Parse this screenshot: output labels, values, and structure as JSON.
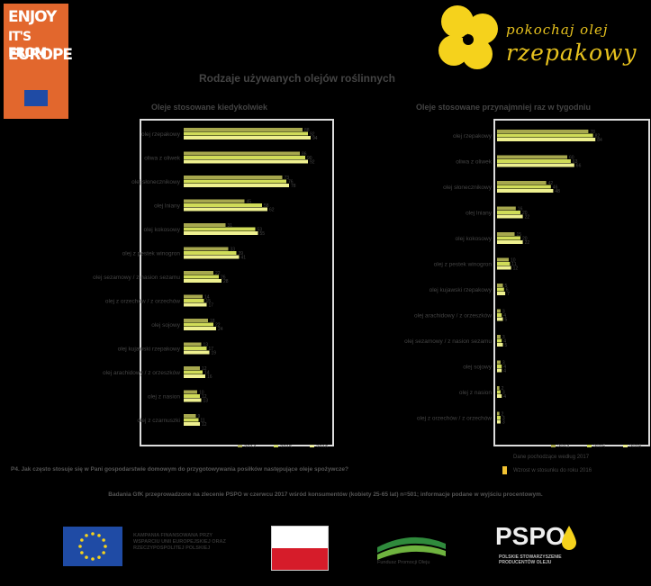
{
  "header": {
    "enjoy_lines": [
      "ENJOY",
      "IT'S FROM",
      "EUROPE"
    ],
    "brand_line1": "pokochaj olej",
    "brand_line2": "rzepakowy",
    "title": "Rodzaje używanych olejów roślinnych"
  },
  "colors": {
    "y2014": "#a7a84e",
    "y2015": "#d0dc58",
    "y2016": "#eef08f",
    "orange": "#e2672d",
    "yellow": "#f5d21c",
    "highlight": "#f2c232"
  },
  "chart_data": [
    {
      "type": "bar",
      "title": "Oleje stosowane kiedykolwiek",
      "categories": [
        "olej rzepakowy",
        "oliwa z oliwek",
        "olej słonecznikowy",
        "olej lniany",
        "olej kokosowy",
        "olej z pestek winogron",
        "olej sezamowy / z nasion sezamu",
        "olej z orzechów / z orzechów",
        "olej sojowy",
        "olej kujawski rzepakowy",
        "olej arachidowy / z orzeszków",
        "olej z nasion",
        "olej z czarnuszki"
      ],
      "series": [
        {
          "name": "2014",
          "values": [
            88,
            86,
            73,
            45,
            31,
            33,
            22,
            14,
            18,
            13,
            12,
            10,
            9
          ]
        },
        {
          "name": "2015",
          "values": [
            92,
            90,
            76,
            58,
            53,
            39,
            26,
            15,
            22,
            17,
            14,
            12,
            11
          ]
        },
        {
          "name": "2016",
          "values": [
            94,
            92,
            78,
            62,
            55,
            41,
            28,
            17,
            24,
            19,
            16,
            13,
            12
          ]
        }
      ],
      "xlim": [
        0,
        100
      ],
      "legend": "bottom"
    },
    {
      "type": "bar",
      "title": "Oleje stosowane przynajmniej raz w tygodniu",
      "categories": [
        "olej rzepakowy",
        "oliwa z oliwek",
        "olej słonecznikowy",
        "olej lniany",
        "olej kokosowy",
        "olej z pestek winogron",
        "olej kujawski rzepakowy",
        "olej arachidowy / z orzeszków",
        "olej sezamowy / z nasion sezamu",
        "olej sojowy",
        "olej z nasion",
        "olej z orzechów / z orzechów"
      ],
      "series": [
        {
          "name": "2014",
          "values": [
            78,
            60,
            42,
            16,
            15,
            10,
            5,
            3,
            3,
            3,
            2,
            2
          ]
        },
        {
          "name": "2015",
          "values": [
            82,
            63,
            46,
            20,
            20,
            11,
            6,
            4,
            4,
            4,
            3,
            3
          ]
        },
        {
          "name": "2016",
          "values": [
            84,
            66,
            48,
            22,
            22,
            12,
            7,
            5,
            5,
            4,
            4,
            3
          ]
        }
      ],
      "xlim": [
        0,
        100
      ],
      "legend": "bottom"
    }
  ],
  "legend_labels": [
    "2014",
    "2015",
    "2016"
  ],
  "notes": {
    "right_note1": "Dane pochodzące według 2017",
    "right_note2": "Wzrost w stosunku do roku 2016",
    "question": "P4. Jak często stosuje się w Pani gospodarstwie domowym do przygotowywania posiłków następujące oleje spożywcze?",
    "footer": "Badania GfK przeprowadzone na zlecenie PSPO w czerwcu 2017 wśród konsumentów (kobiety 25-65 lat) n=501; informacje podane w wyjściu procentowym."
  },
  "logos": {
    "campaign_text": [
      "KAMPANIA FINANSOWANA PRZY",
      "WSPARCIU UNII EUROPEJSKIEJ ORAZ",
      "RZECZYPOSPOLITEJ POLSKIEJ"
    ],
    "fund_text": "Fundusz Promocji Oleju",
    "pspo_text": "PSPO",
    "pspo_sub": [
      "POLSKIE STOWARZYSZENIE",
      "PRODUCENTÓW OLEJU"
    ]
  }
}
